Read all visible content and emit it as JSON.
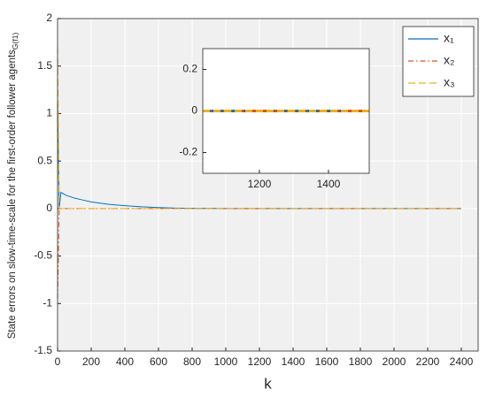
{
  "chart_data": [
    {
      "type": "line",
      "xlabel": "k",
      "ylabel": "State errors on slow-time-scale for the first-order follower agents",
      "ylabel_subscript": "G(f1)",
      "x": [
        0,
        10,
        20,
        50,
        100,
        150,
        200,
        300,
        400,
        500,
        600,
        700,
        800,
        1000,
        1500,
        2000,
        2400
      ],
      "series": [
        {
          "name": "x₁",
          "color": "#0072bd",
          "style": "solid",
          "values": [
            1.1,
            0,
            0.17,
            0.14,
            0.11,
            0.09,
            0.07,
            0.045,
            0.03,
            0.018,
            0.01,
            0.005,
            0.002,
            0,
            0,
            0,
            0
          ]
        },
        {
          "name": "x₂",
          "color": "#d95319",
          "style": "dashdot",
          "values": [
            -0.95,
            0,
            0,
            0,
            0,
            0,
            0,
            0,
            0,
            0,
            0,
            0,
            0,
            0,
            0,
            0,
            0
          ]
        },
        {
          "name": "x₃",
          "color": "#edb120",
          "style": "dashed",
          "values": [
            1.7,
            0,
            0,
            0,
            0,
            0,
            0,
            0,
            0,
            0,
            0,
            0,
            0,
            0,
            0,
            0,
            0
          ]
        }
      ],
      "xlim": [
        0,
        2500
      ],
      "xticks": [
        0,
        200,
        400,
        600,
        800,
        1000,
        1200,
        1400,
        1600,
        1800,
        2000,
        2200,
        2400
      ],
      "ylim": [
        -1.5,
        2
      ],
      "yticks": [
        -1.5,
        -1,
        -0.5,
        0,
        0.5,
        1,
        1.5,
        2
      ],
      "grid": true,
      "legend": "top-right"
    },
    {
      "type": "line",
      "x": [
        1036,
        1518
      ],
      "series": [
        {
          "color": "#0072bd",
          "style": "solid",
          "values": [
            0,
            0
          ]
        },
        {
          "color": "#d95319",
          "style": "dashdot",
          "values": [
            0,
            0
          ]
        },
        {
          "color": "#edb120",
          "style": "dashed",
          "values": [
            0,
            0
          ]
        }
      ],
      "xlim": [
        1036,
        1518
      ],
      "xticks": [
        1200,
        1400
      ],
      "ylim": [
        -0.3,
        0.3
      ],
      "yticks": [
        -0.2,
        0,
        0.2
      ],
      "grid": false
    }
  ]
}
